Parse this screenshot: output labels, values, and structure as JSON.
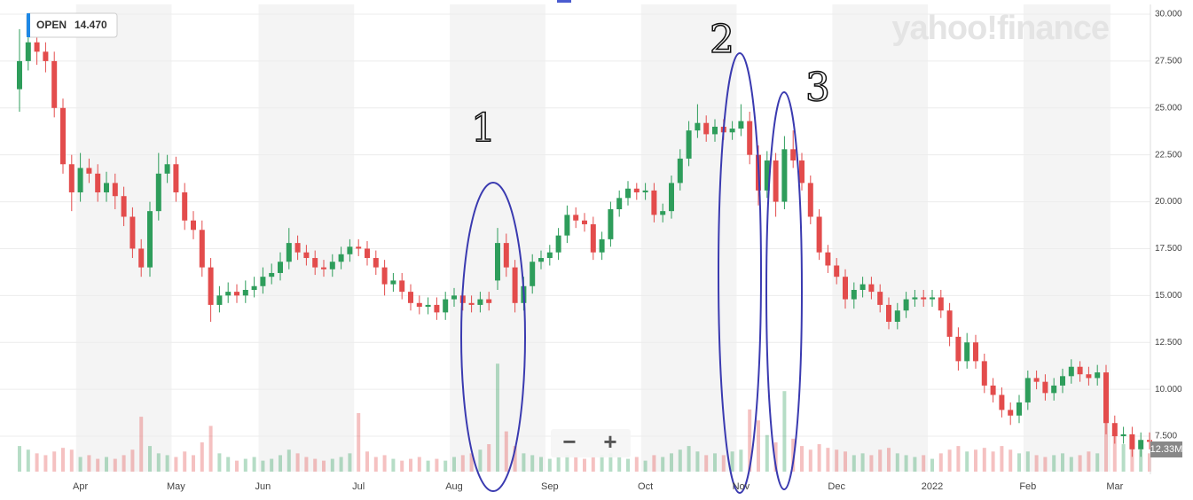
{
  "chart_data": {
    "type": "candlestick",
    "watermark": "yahoo!finance",
    "readout_label": "OPEN",
    "readout_value": "14.470",
    "volume_readout": "12.33M",
    "controls": [
      "−",
      "+"
    ],
    "annotations": [
      "1",
      "2",
      "3"
    ],
    "up_color": "#2e9d5b",
    "down_color": "#e34c4c",
    "grid": true,
    "ylim": [
      5.61,
      30.52
    ],
    "yticks": [
      {
        "value": 7.5,
        "label": "7.500"
      },
      {
        "value": 10,
        "label": "10.000"
      },
      {
        "value": 12.5,
        "label": "12.500"
      },
      {
        "value": 15,
        "label": "15.000"
      },
      {
        "value": 17.5,
        "label": "17.500"
      },
      {
        "value": 20,
        "label": "20.000"
      },
      {
        "value": 22.5,
        "label": "22.500"
      },
      {
        "value": 25,
        "label": "25.000"
      },
      {
        "value": 27.5,
        "label": "27.500"
      },
      {
        "value": 30,
        "label": "30.000"
      }
    ],
    "volume_ylim": [
      0,
      250
    ],
    "categories": [
      null,
      null,
      null,
      null,
      null,
      null,
      null,
      "Apr",
      null,
      null,
      null,
      null,
      null,
      null,
      null,
      null,
      null,
      null,
      "May",
      null,
      null,
      null,
      null,
      null,
      null,
      null,
      null,
      null,
      "Jun",
      null,
      null,
      null,
      null,
      null,
      null,
      null,
      null,
      null,
      null,
      "Jul",
      null,
      null,
      null,
      null,
      null,
      null,
      null,
      null,
      null,
      null,
      "Aug",
      null,
      null,
      null,
      null,
      null,
      null,
      null,
      null,
      null,
      null,
      "Sep",
      null,
      null,
      null,
      null,
      null,
      null,
      null,
      null,
      null,
      null,
      "Oct",
      null,
      null,
      null,
      null,
      null,
      null,
      null,
      null,
      null,
      null,
      "Nov",
      null,
      null,
      null,
      null,
      null,
      null,
      null,
      null,
      null,
      null,
      "Dec",
      null,
      null,
      null,
      null,
      null,
      null,
      null,
      null,
      null,
      null,
      "2022",
      null,
      null,
      null,
      null,
      null,
      null,
      null,
      null,
      null,
      null,
      "Feb",
      null,
      null,
      null,
      null,
      null,
      null,
      null,
      null,
      null,
      "Mar",
      null,
      null,
      null,
      null
    ],
    "open": [
      26,
      27.5,
      28.5,
      28,
      27.5,
      25,
      22,
      20.5,
      21.8,
      21.5,
      20.5,
      21,
      20.3,
      19.2,
      17.5,
      16.5,
      19.5,
      21.5,
      22,
      20.5,
      19,
      18.5,
      16.5,
      14.5,
      15,
      15.2,
      15,
      15.3,
      15.5,
      16,
      16.2,
      16.8,
      17.8,
      17.3,
      17,
      16.5,
      16.4,
      16.8,
      17.2,
      17.6,
      17.5,
      17,
      16.5,
      15.6,
      15.8,
      15.2,
      14.6,
      14.4,
      14.5,
      14.1,
      14.8,
      15,
      14.6,
      14.5,
      14.8,
      15.8,
      17.8,
      16.5,
      14.6,
      15.5,
      16.8,
      17,
      17.3,
      18.2,
      19.3,
      19,
      18.8,
      17.3,
      18,
      19.6,
      20.2,
      20.7,
      20.5,
      20.6,
      19.3,
      19.5,
      21,
      22.3,
      23.8,
      24.2,
      23.6,
      24,
      23.7,
      23.9,
      24.3,
      22.5,
      20.6,
      22.2,
      20,
      22.8,
      22.2,
      21,
      19.2,
      17.3,
      16.6,
      16,
      14.8,
      15.3,
      15.6,
      15.2,
      14.5,
      13.6,
      14.2,
      14.8,
      14.9,
      14.8,
      14.9,
      14.2,
      12.8,
      11.5,
      12.5,
      11.5,
      10.2,
      9.7,
      8.9,
      8.6,
      9.3,
      10.6,
      10.4,
      9.8,
      10.2,
      10.7,
      11.2,
      10.8,
      10.6,
      10.9,
      8.2,
      7.5,
      7.6,
      6.8,
      7.3
    ],
    "high": [
      29.2,
      29,
      29,
      28.5,
      28,
      25.5,
      22.5,
      22.6,
      22.3,
      22,
      21.6,
      21.5,
      20.8,
      19.7,
      18,
      20,
      22.6,
      22.5,
      22.4,
      21,
      19.5,
      19,
      17,
      15.5,
      15.7,
      15.6,
      15.8,
      16,
      16.5,
      16.7,
      17.3,
      18.6,
      18.2,
      17.7,
      17.4,
      16.9,
      17.2,
      17.6,
      18,
      18,
      17.9,
      17.4,
      16.9,
      16.2,
      16.2,
      15.6,
      15,
      14.9,
      14.9,
      15.2,
      15.4,
      15.4,
      15,
      15.2,
      15.2,
      18.6,
      18.3,
      16.9,
      16,
      17.2,
      17.4,
      17.7,
      18.6,
      19.8,
      19.7,
      19.4,
      19.2,
      18.4,
      20,
      20.6,
      21.1,
      21,
      21,
      21,
      19.9,
      21.4,
      22.8,
      24.3,
      25.2,
      24.6,
      24.4,
      24.4,
      24.3,
      25.2,
      24.8,
      23,
      22.7,
      22.6,
      23.5,
      23.8,
      22.6,
      21.4,
      19.6,
      17.7,
      17,
      16.4,
      15.7,
      16,
      16,
      15.6,
      14.9,
      14.6,
      15.2,
      15.3,
      15.3,
      15.3,
      15.3,
      14.6,
      13.3,
      13,
      12.9,
      11.9,
      10.6,
      10.1,
      9.3,
      9.7,
      11,
      11,
      10.8,
      10.6,
      11.1,
      11.6,
      11.5,
      11.2,
      11.3,
      11.3,
      8.6,
      8,
      8,
      7.7,
      7.7
    ],
    "low": [
      24.8,
      27,
      27.3,
      26.9,
      24.5,
      21.5,
      19.5,
      20,
      21,
      20,
      20,
      19.6,
      18.7,
      17,
      16,
      16,
      19,
      21,
      20,
      18.5,
      18,
      16,
      13.6,
      14.1,
      14.6,
      14.6,
      14.6,
      14.9,
      15.1,
      15.6,
      15.8,
      16.4,
      16.9,
      16.6,
      16.1,
      16,
      16,
      16.4,
      16.8,
      17.1,
      16.6,
      16.1,
      15,
      15.2,
      14.8,
      14.2,
      14,
      14,
      13.7,
      13.7,
      14.4,
      14.2,
      14.1,
      14.1,
      14.2,
      15.3,
      16,
      14.1,
      14.2,
      15.1,
      16.4,
      16.6,
      16.9,
      17.8,
      18.6,
      18.4,
      16.9,
      16.9,
      17.6,
      19.2,
      19.8,
      20.1,
      20.1,
      18.9,
      18.9,
      19.1,
      20.6,
      21.9,
      23.4,
      23.2,
      23.2,
      23.3,
      23.3,
      23.5,
      22,
      19.8,
      20.2,
      19.2,
      19.6,
      21.8,
      20.6,
      18.8,
      16.9,
      16.2,
      15.6,
      14.3,
      14.3,
      14.9,
      14.8,
      14.1,
      13.2,
      13.2,
      13.8,
      14.4,
      14.4,
      14.4,
      13.8,
      12.3,
      11,
      11.1,
      11.1,
      9.8,
      9.3,
      8.5,
      8.1,
      8.2,
      8.9,
      10,
      9.4,
      9.4,
      9.8,
      10.3,
      10.4,
      10.2,
      10.2,
      7.6,
      7.1,
      7.1,
      6.4,
      6.4,
      6.8
    ],
    "close": [
      27.5,
      28.5,
      28,
      27.5,
      25,
      22,
      20.5,
      21.8,
      21.5,
      20.5,
      21,
      20.3,
      19.2,
      17.5,
      16.5,
      19.5,
      21.5,
      22,
      20.5,
      19,
      18.5,
      16.5,
      14.5,
      15,
      15.2,
      15,
      15.3,
      15.5,
      16,
      16.2,
      16.8,
      17.8,
      17.3,
      17,
      16.5,
      16.4,
      16.8,
      17.2,
      17.6,
      17.5,
      17,
      16.5,
      15.6,
      15.8,
      15.2,
      14.6,
      14.4,
      14.5,
      14.1,
      14.8,
      15,
      14.6,
      14.5,
      14.8,
      14.6,
      17.8,
      16.5,
      14.6,
      15.5,
      16.8,
      17,
      17.3,
      18.2,
      19.3,
      19,
      18.8,
      17.3,
      18,
      19.6,
      20.2,
      20.7,
      20.5,
      20.6,
      19.3,
      19.5,
      21,
      22.3,
      23.8,
      24.2,
      23.6,
      24,
      23.7,
      23.9,
      24.3,
      22.5,
      20.6,
      22.2,
      20,
      22.8,
      22.2,
      21,
      19.2,
      17.3,
      16.6,
      16,
      14.8,
      15.3,
      15.6,
      15.2,
      14.5,
      13.6,
      14.2,
      14.8,
      14.9,
      14.8,
      14.9,
      14.2,
      12.8,
      11.5,
      12.5,
      11.5,
      10.2,
      9.7,
      8.9,
      8.6,
      9.3,
      10.6,
      10.4,
      9.8,
      10.2,
      10.7,
      11.2,
      10.8,
      10.6,
      10.9,
      8.2,
      7.5,
      7.6,
      6.8,
      7.3,
      7.2
    ],
    "volume": [
      14,
      12,
      10,
      9,
      11,
      13,
      12,
      8,
      9,
      7,
      8,
      7,
      9,
      12,
      30,
      14,
      10,
      9,
      8,
      11,
      9,
      16,
      25,
      10,
      8,
      6,
      7,
      8,
      6,
      7,
      9,
      12,
      10,
      8,
      7,
      6,
      7,
      8,
      10,
      32,
      11,
      8,
      9,
      7,
      6,
      7,
      8,
      6,
      7,
      6,
      8,
      9,
      10,
      12,
      15,
      59,
      22,
      14,
      10,
      9,
      8,
      7,
      8,
      9,
      8,
      7,
      8,
      9,
      10,
      8,
      7,
      8,
      6,
      9,
      8,
      10,
      12,
      14,
      11,
      9,
      10,
      9,
      11,
      12,
      34,
      28,
      20,
      16,
      44,
      18,
      14,
      12,
      15,
      13,
      12,
      11,
      9,
      10,
      9,
      12,
      13,
      10,
      9,
      8,
      9,
      7,
      10,
      12,
      14,
      11,
      12,
      13,
      11,
      14,
      12,
      10,
      11,
      9,
      8,
      9,
      10,
      8,
      9,
      11,
      10,
      34,
      20,
      15,
      14,
      12,
      10
    ]
  }
}
